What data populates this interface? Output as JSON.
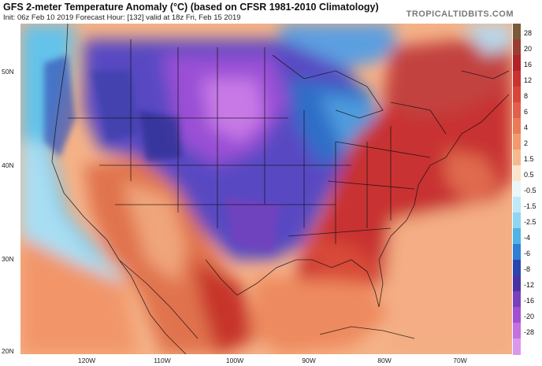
{
  "header": {
    "title": "GFS 2-meter Temperature Anomaly (°C) (based on CFSR 1981-2010 Climatology)",
    "subtitle": "Init: 06z Feb 10 2019   Forecast Hour: [132]   valid at 18z Fri, Feb 15 2019",
    "brand": "TROPICALTIDBITS.COM"
  },
  "axes": {
    "latitude_labels": [
      "50N",
      "40N",
      "30N",
      "20N"
    ],
    "longitude_labels": [
      "120W",
      "110W",
      "100W",
      "90W",
      "80W",
      "70W"
    ]
  },
  "colorbar": {
    "labels": [
      "28",
      "20",
      "16",
      "12",
      "8",
      "6",
      "4",
      "2",
      "1.5",
      "0.5",
      "-0.5",
      "-1.5",
      "-2.5",
      "-4",
      "-6",
      "-8",
      "-12",
      "-16",
      "-20",
      "-28"
    ],
    "colors": [
      "#7a5a3a",
      "#9a3f2f",
      "#b2232a",
      "#c93330",
      "#d8463a",
      "#e2604a",
      "#ec7a56",
      "#f29a6a",
      "#f6b98e",
      "#fbe3c8",
      "#e9f7fb",
      "#bfe9f6",
      "#8fd6f0",
      "#4fb3e6",
      "#2f7fd3",
      "#2846ad",
      "#4733a3",
      "#7a3fbd",
      "#a24fd1",
      "#c56fe0",
      "#db97ec"
    ]
  }
}
